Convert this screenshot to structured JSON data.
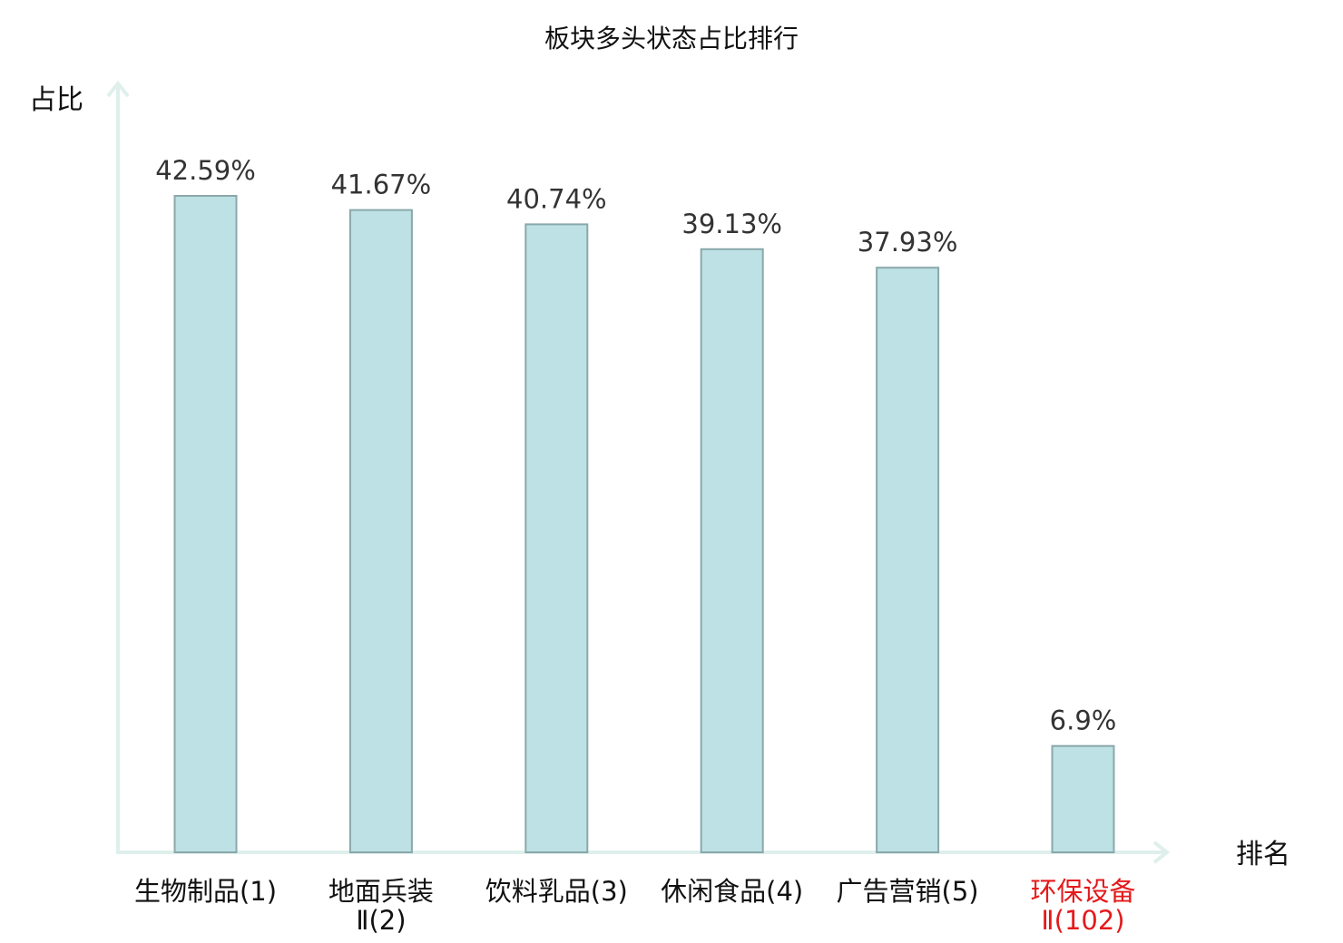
{
  "chart_data": {
    "type": "bar",
    "title": "板块多头状态占比排行",
    "ylabel": "占比",
    "xlabel": "排名",
    "ylim": [
      0,
      50
    ],
    "grid": false,
    "legend": "none",
    "categories": [
      {
        "name": "生物制品",
        "suffix": "(1)",
        "lines": [
          "生物制品(1)"
        ],
        "highlight": false
      },
      {
        "name": "地面兵装Ⅱ",
        "suffix": "(2)",
        "lines": [
          "地面兵装",
          "Ⅱ(2)"
        ],
        "highlight": false
      },
      {
        "name": "饮料乳品",
        "suffix": "(3)",
        "lines": [
          "饮料乳品(3)"
        ],
        "highlight": false
      },
      {
        "name": "休闲食品",
        "suffix": "(4)",
        "lines": [
          "休闲食品(4)"
        ],
        "highlight": false
      },
      {
        "name": "广告营销",
        "suffix": "(5)",
        "lines": [
          "广告营销(5)"
        ],
        "highlight": false
      },
      {
        "name": "环保设备Ⅱ",
        "suffix": "(102)",
        "lines": [
          "环保设备",
          "Ⅱ(102)"
        ],
        "highlight": true
      }
    ],
    "values": [
      42.59,
      41.67,
      40.74,
      39.13,
      37.93,
      6.9
    ],
    "value_labels": [
      "42.59%",
      "41.67%",
      "40.74%",
      "39.13%",
      "37.93%",
      "6.9%"
    ],
    "colors": {
      "bar_fill": "#bde1e4",
      "bar_stroke": "#8aa8ab",
      "axis": "#dff0ec",
      "label_text": "#111111",
      "suffix_text": "#444444",
      "highlight_text": "#e41a1c"
    }
  }
}
